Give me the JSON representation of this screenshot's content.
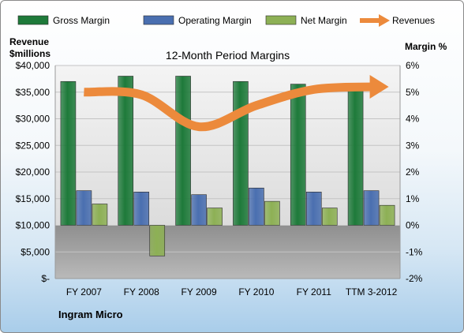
{
  "chart_data": {
    "type": "bar",
    "title": "12-Month Period Margins",
    "company": "Ingram Micro",
    "left_axis": {
      "title_line1": "Revenue",
      "title_line2": "$millions",
      "ticks": [
        "$40,000",
        "$35,000",
        "$30,000",
        "$25,000",
        "$20,000",
        "$15,000",
        "$10,000",
        "$5,000",
        "$-"
      ],
      "ylim": [
        0,
        40000
      ]
    },
    "right_axis": {
      "title": "Margin %",
      "ticks": [
        "6%",
        "5%",
        "4%",
        "3%",
        "2%",
        "1%",
        "0%",
        "-1%",
        "-2%"
      ],
      "ylim": [
        -2,
        6
      ]
    },
    "categories": [
      "FY 2007",
      "FY 2008",
      "FY 2009",
      "FY 2010",
      "FY 2011",
      "TTM 3-2012"
    ],
    "series": [
      {
        "name": "Gross Margin",
        "axis": "right",
        "color": "#1e7a3a",
        "values": [
          5.4,
          5.6,
          5.6,
          5.4,
          5.3,
          5.3
        ]
      },
      {
        "name": "Operating Margin",
        "axis": "right",
        "color": "#4a6fb0",
        "values": [
          1.3,
          1.25,
          1.15,
          1.4,
          1.25,
          1.3
        ]
      },
      {
        "name": "Net Margin",
        "axis": "right",
        "color": "#8db055",
        "values": [
          0.8,
          -1.15,
          0.65,
          0.9,
          0.65,
          0.75
        ]
      },
      {
        "name": "Revenues",
        "axis": "left",
        "type": "line",
        "color": "#ec8a3c",
        "values": [
          35000,
          34500,
          28500,
          32500,
          35500,
          36000
        ]
      }
    ],
    "legend_position": "top",
    "grid": true
  }
}
